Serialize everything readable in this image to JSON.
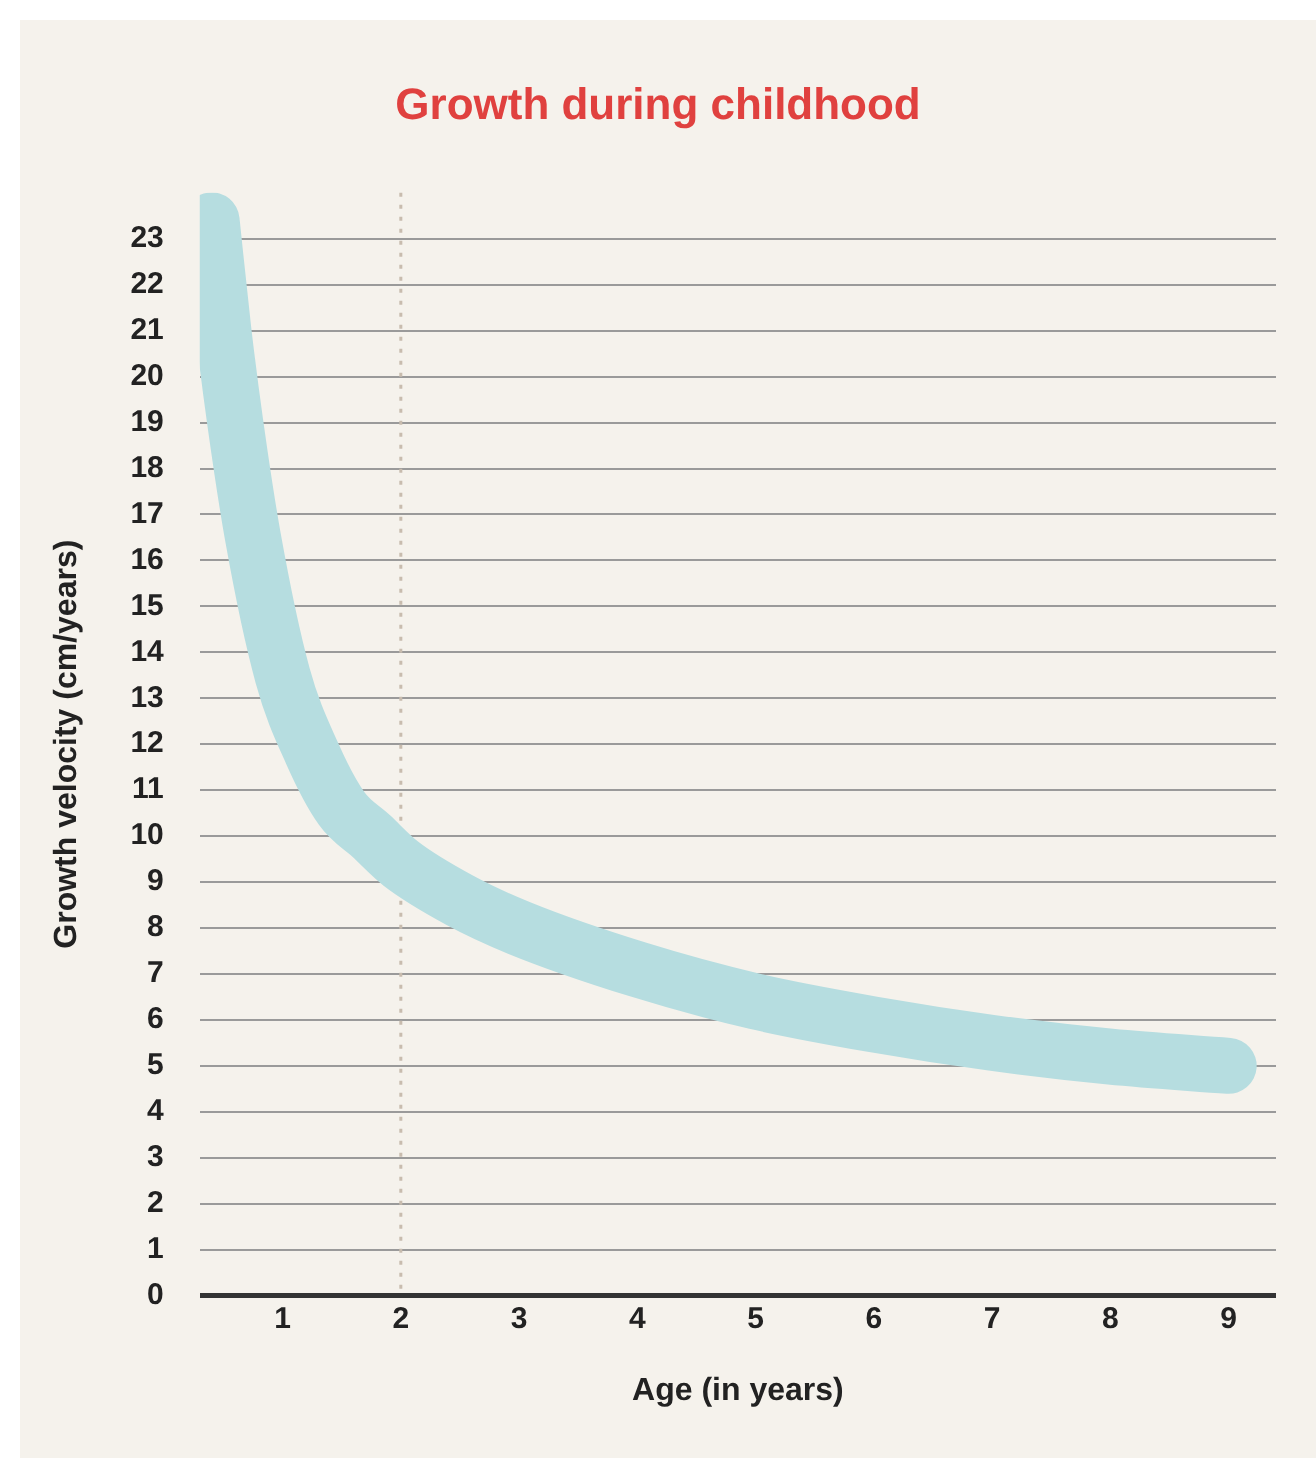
{
  "chart_data": {
    "type": "line",
    "title": "Growth during childhood",
    "xlabel": "Age (in years)",
    "ylabel": "Growth velocity (cm/years)",
    "x": [
      0.4,
      0.5,
      0.6,
      0.75,
      1,
      1.25,
      1.5,
      1.75,
      2,
      2.5,
      3,
      4,
      5,
      6,
      7,
      8,
      9
    ],
    "series": [
      {
        "color": "#b6dde0",
        "values": [
          23.4,
          21,
          19,
          16.5,
          13.5,
          11.8,
          10.6,
          10,
          9.4,
          8.6,
          8,
          7.1,
          6.4,
          5.9,
          5.5,
          5.2,
          5
        ]
      }
    ],
    "xlim": [
      0.3,
      9.4
    ],
    "xticks": [
      1,
      2,
      3,
      4,
      5,
      6,
      7,
      8,
      9
    ],
    "ylim": [
      0,
      24
    ],
    "yticks": [
      0,
      1,
      2,
      3,
      4,
      5,
      6,
      7,
      8,
      9,
      10,
      11,
      12,
      13,
      14,
      15,
      16,
      17,
      18,
      19,
      20,
      21,
      22,
      23
    ],
    "ref_lines": [
      {
        "axis": "x",
        "value": 2,
        "color": "#c8bcae",
        "line_style": "dotted"
      }
    ],
    "grid": "y",
    "legend": false,
    "marker": "none",
    "line_style": "solid"
  }
}
